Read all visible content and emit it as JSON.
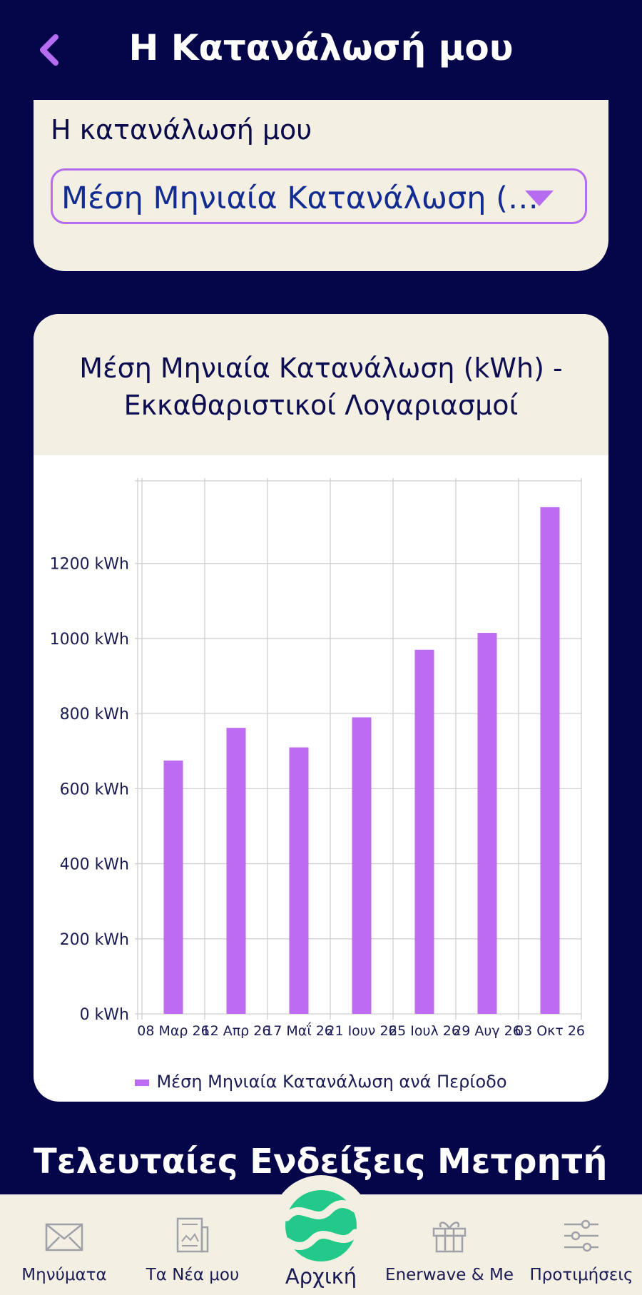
{
  "header": {
    "title": "Η Κατανάλωσή μου"
  },
  "selector": {
    "label": "Η κατανάλωσή μου",
    "value": "Μέση Μηνιαία Κατανάλωση (k..."
  },
  "chart": {
    "title_line1": "Μέση Μηνιαία Κατανάλωση (kWh) -",
    "title_line2": "Εκκαθαριστικοί Λογαριασμοί"
  },
  "chart_data": {
    "type": "bar",
    "categories": [
      "08 Μαρ 26",
      "12 Απρ 26",
      "17 Μαΐ 26",
      "21 Ιουν 26",
      "25 Ιουλ 26",
      "29 Αυγ 26",
      "03 Οκτ 26"
    ],
    "series": [
      {
        "name": "Μέση Μηνιαία Κατανάλωση ανά Περίοδο",
        "values": [
          675,
          762,
          710,
          790,
          970,
          1015,
          1350
        ],
        "color": "#bd6bf2"
      }
    ],
    "y_ticks": [
      0,
      200,
      400,
      600,
      800,
      1000,
      1200
    ],
    "y_tick_suffix": " kWh",
    "ylim": [
      0,
      1420
    ],
    "grid": true,
    "legend": "bottom"
  },
  "section": {
    "title": "Τελευταίες Ενδείξεις Μετρητή"
  },
  "nav": {
    "messages": "Μηνύματα",
    "news": "Τα Νέα μου",
    "home": "Αρχική",
    "enerwave": "Enerwave & Me",
    "preferences": "Προτιμήσεις"
  },
  "colors": {
    "background": "#05054a",
    "card": "#f3efe2",
    "accent": "#bd6bf2",
    "home_logo": "#22c98a",
    "text_dark": "#0d0d52"
  },
  "icons": {
    "back": "chevron-left-icon",
    "dropdown": "triangle-down-icon",
    "messages": "envelope-icon",
    "news": "newspaper-icon",
    "home": "wave-logo-icon",
    "enerwave": "gift-icon",
    "preferences": "sliders-icon"
  }
}
